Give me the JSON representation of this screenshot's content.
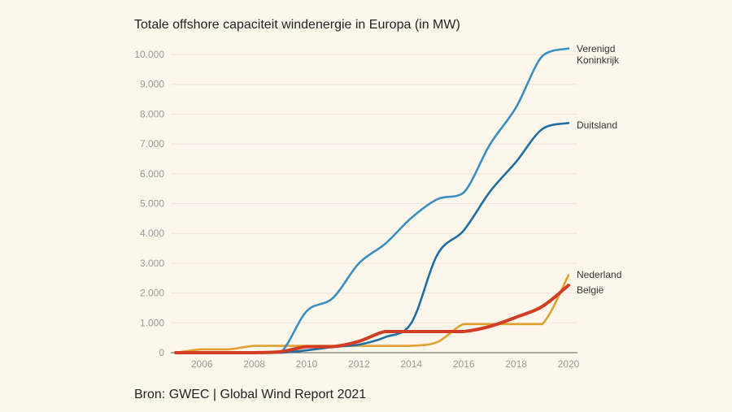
{
  "chart_data": {
    "type": "line",
    "title": "Totale offshore capaciteit windenergie in Europa (in MW)",
    "source": "Bron: GWEC | Global Wind Report 2021",
    "x": [
      2005,
      2006,
      2007,
      2008,
      2009,
      2010,
      2011,
      2012,
      2013,
      2014,
      2015,
      2016,
      2017,
      2018,
      2019,
      2020
    ],
    "xlim": [
      2005,
      2020
    ],
    "ylim": [
      0,
      10000
    ],
    "xticks": [
      2006,
      2008,
      2010,
      2012,
      2014,
      2016,
      2018,
      2020
    ],
    "xtick_labels": [
      "2006",
      "2008",
      "2010",
      "2012",
      "2014",
      "2016",
      "2018",
      "2020"
    ],
    "yticks": [
      0,
      1000,
      2000,
      3000,
      4000,
      5000,
      6000,
      7000,
      8000,
      9000,
      10000
    ],
    "ytick_labels": [
      "0",
      "1.000",
      "2.000",
      "3.000",
      "4.000",
      "5.000",
      "6.000",
      "7.000",
      "8.000",
      "9.000",
      "10.000"
    ],
    "grid": true,
    "legend": "direct labels at line ends",
    "series": [
      {
        "name": "Verenigd Koninkrijk",
        "label_lines": [
          "Verenigd",
          "Koninkrijk"
        ],
        "color": "#3a8fc0",
        "values": [
          0,
          0,
          0,
          0,
          0,
          1390,
          1830,
          3000,
          3650,
          4520,
          5150,
          5370,
          6980,
          8230,
          9950,
          10200
        ]
      },
      {
        "name": "Duitsland",
        "label_lines": [
          "Duitsland"
        ],
        "color": "#1f6ea3",
        "values": [
          0,
          0,
          0,
          0,
          0,
          80,
          190,
          270,
          520,
          1000,
          3300,
          4100,
          5400,
          6400,
          7500,
          7700
        ]
      },
      {
        "name": "Nederland",
        "label_lines": [
          "Nederland"
        ],
        "color": "#e0a030",
        "values": [
          0,
          110,
          110,
          230,
          230,
          230,
          230,
          230,
          230,
          230,
          360,
          960,
          960,
          960,
          960,
          2600
        ]
      },
      {
        "name": "België",
        "label_lines": [
          "België"
        ],
        "color": "#d23c24",
        "values": [
          0,
          0,
          0,
          0,
          30,
          200,
          200,
          380,
          710,
          710,
          710,
          710,
          880,
          1190,
          1550,
          2260
        ]
      }
    ]
  }
}
